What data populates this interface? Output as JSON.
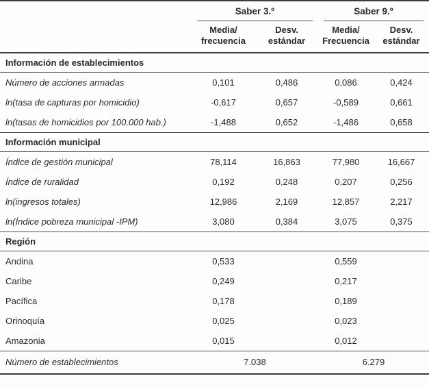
{
  "table": {
    "groups": [
      {
        "label": "Saber 3.º"
      },
      {
        "label": "Saber 9.º"
      }
    ],
    "sub_headers": [
      "Media/\nfrecuencia",
      "Desv.\nestándar",
      "Media/\nFrecuencia",
      "Desv.\nestándar"
    ],
    "sections": [
      {
        "title": "Información de establecimientos",
        "rows": [
          {
            "label": "Número de acciones armadas",
            "values": [
              "0,101",
              "0,486",
              "0,086",
              "0,424"
            ]
          },
          {
            "label": "ln(tasa de capturas por homicidio)",
            "values": [
              "-0,617",
              "0,657",
              "-0,589",
              "0,661"
            ]
          },
          {
            "label": "ln(tasas de homicidios por 100.000 hab.)",
            "values": [
              "-1,488",
              "0,652",
              "-1,486",
              "0,658"
            ]
          }
        ]
      },
      {
        "title": "Información municipal",
        "rows": [
          {
            "label": "Índice de gestión municipal",
            "values": [
              "78,114",
              "16,863",
              "77,980",
              "16,667"
            ]
          },
          {
            "label": "Índice de ruralidad",
            "values": [
              "0,192",
              "0,248",
              "0,207",
              "0,256"
            ]
          },
          {
            "label": "ln(ingresos totales)",
            "values": [
              "12,986",
              "2,169",
              "12,857",
              "2,217"
            ]
          },
          {
            "label": "ln(Índice pobreza municipal -IPM)",
            "values": [
              "3,080",
              "0,384",
              "3,075",
              "0,375"
            ]
          }
        ]
      },
      {
        "title": "Región",
        "rows": [
          {
            "label": "Andina",
            "values": [
              "0,533",
              "",
              "0,559",
              ""
            ]
          },
          {
            "label": "Caribe",
            "values": [
              "0,249",
              "",
              "0,217",
              ""
            ]
          },
          {
            "label": "Pacífica",
            "values": [
              "0,178",
              "",
              "0,189",
              ""
            ]
          },
          {
            "label": "Orinoquía",
            "values": [
              "0,025",
              "",
              "0,023",
              ""
            ]
          },
          {
            "label": "Amazonia",
            "values": [
              "0,015",
              "",
              "0,012",
              ""
            ]
          }
        ]
      }
    ],
    "footer": {
      "label": "Número de establecimientos",
      "values": [
        "7.038",
        "6.279"
      ]
    }
  }
}
